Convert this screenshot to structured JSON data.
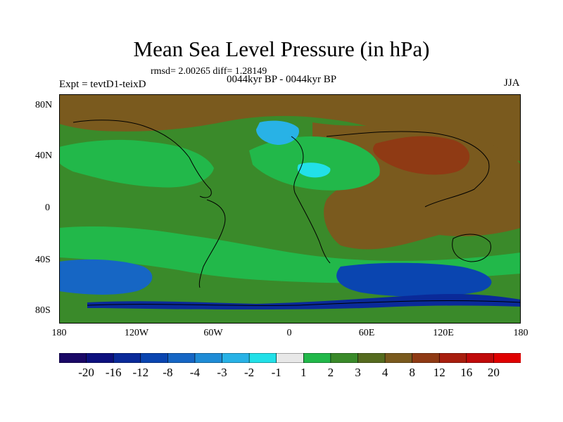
{
  "chart_data": {
    "type": "heatmap",
    "title": "Mean Sea Level Pressure (in hPa)",
    "stats_label": "rmsd= 2.00265 diff= 1.28149",
    "period_label": "0044kyr BP - 0044kyr BP",
    "expt_label": "Expt = tevtD1-teixD",
    "season_label": "JJA",
    "x_ticks": [
      "180",
      "120W",
      "60W",
      "0",
      "60E",
      "120E",
      "180"
    ],
    "y_ticks": [
      "80N",
      "40N",
      "0",
      "40S",
      "80S"
    ],
    "xlim": [
      -180,
      180
    ],
    "ylim": [
      -90,
      90
    ],
    "colorbar_levels": [
      "-20",
      "-16",
      "-12",
      "-8",
      "-4",
      "-3",
      "-2",
      "-1",
      "1",
      "2",
      "3",
      "4",
      "8",
      "12",
      "16",
      "20"
    ],
    "colorbar_colors": [
      "#1a0866",
      "#0d107e",
      "#0a2a99",
      "#0a45b0",
      "#1666c4",
      "#1f8cd6",
      "#28b2e6",
      "#22e0e8",
      "#e8e8e8",
      "#22b84a",
      "#3a8a2a",
      "#556b1f",
      "#7a5a1e",
      "#8f3a14",
      "#a81e0e",
      "#c00a0a",
      "#e00000"
    ],
    "regions": [
      {
        "name": "arctic",
        "value": 4
      },
      {
        "name": "north-pacific-high",
        "value": 1
      },
      {
        "name": "north-atlantic",
        "value": 1
      },
      {
        "name": "atlantic-low-core",
        "value": -3
      },
      {
        "name": "mediterranean-low",
        "value": -2
      },
      {
        "name": "eurasia",
        "value": 4
      },
      {
        "name": "siberia",
        "value": 8
      },
      {
        "name": "tropics-band",
        "value": 2
      },
      {
        "name": "south-pacific-band",
        "value": 1
      },
      {
        "name": "southern-ocean-low-pacific",
        "value": -8
      },
      {
        "name": "southern-ocean-low-indian",
        "value": -12
      },
      {
        "name": "antarctic-coast",
        "value": -16
      },
      {
        "name": "antarctica",
        "value": 2
      }
    ]
  }
}
